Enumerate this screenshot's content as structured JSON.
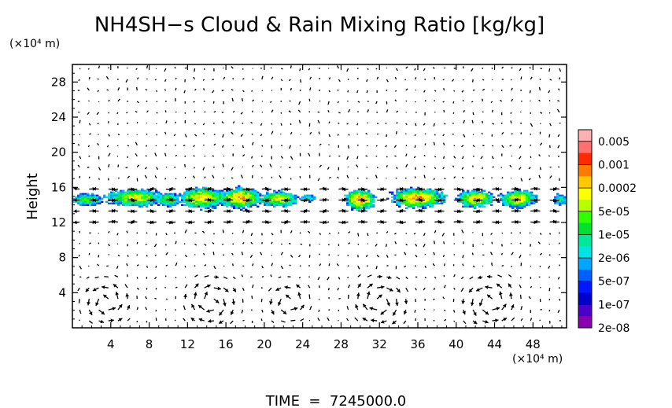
{
  "chart_data": {
    "type": "heatmap",
    "title": "NH4SH−s Cloud & Rain Mixing Ratio [kg/kg]",
    "xlabel": "",
    "ylabel": "Height",
    "x_unit": "(×10⁴ m)",
    "y_unit": "(×10⁴ m)",
    "xlim": [
      0,
      51.5
    ],
    "ylim": [
      0,
      30
    ],
    "x_ticks": [
      4,
      8,
      12,
      16,
      20,
      24,
      28,
      32,
      36,
      40,
      44,
      48
    ],
    "y_ticks": [
      4,
      8,
      12,
      16,
      20,
      24,
      28
    ],
    "colorbar": {
      "labels": [
        "0.005",
        "0.001",
        "0.0002",
        "5e-05",
        "1e-05",
        "2e-06",
        "5e-07",
        "1e-07",
        "2e-08"
      ],
      "colors": [
        "#ffb0b0",
        "#ff7070",
        "#ff2a00",
        "#ff7a00",
        "#ffc800",
        "#ffff00",
        "#b8ff00",
        "#30ff00",
        "#00e030",
        "#00e89a",
        "#00e4e4",
        "#00a6ff",
        "#0060ff",
        "#0018ff",
        "#0000c8",
        "#4a00c8",
        "#8800b0"
      ]
    },
    "cloud_blobs": [
      {
        "x": 1.5,
        "y": 14.6,
        "w": 3.2,
        "h": 1.4,
        "peak": 0.55
      },
      {
        "x": 6.5,
        "y": 14.8,
        "w": 6.0,
        "h": 2.0,
        "peak": 0.7
      },
      {
        "x": 10.0,
        "y": 14.6,
        "w": 2.6,
        "h": 1.6,
        "peak": 0.55
      },
      {
        "x": 13.5,
        "y": 14.8,
        "w": 5.0,
        "h": 2.4,
        "peak": 0.75
      },
      {
        "x": 17.5,
        "y": 14.8,
        "w": 4.5,
        "h": 2.4,
        "peak": 0.8
      },
      {
        "x": 21.5,
        "y": 14.7,
        "w": 4.2,
        "h": 1.8,
        "peak": 0.7
      },
      {
        "x": 24.5,
        "y": 14.8,
        "w": 1.6,
        "h": 0.8,
        "peak": 0.4
      },
      {
        "x": 30.0,
        "y": 14.6,
        "w": 3.2,
        "h": 2.4,
        "peak": 0.85
      },
      {
        "x": 36.0,
        "y": 14.8,
        "w": 5.8,
        "h": 2.2,
        "peak": 0.85
      },
      {
        "x": 42.0,
        "y": 14.7,
        "w": 4.0,
        "h": 2.0,
        "peak": 0.75
      },
      {
        "x": 46.5,
        "y": 14.7,
        "w": 4.0,
        "h": 2.0,
        "peak": 0.75
      },
      {
        "x": 50.8,
        "y": 14.6,
        "w": 1.4,
        "h": 1.2,
        "peak": 0.45
      }
    ],
    "wind_cells": [
      {
        "cx": 3.5,
        "cy": 3.0,
        "r": 3.5,
        "dir": 1
      },
      {
        "cx": 14.5,
        "cy": 3.0,
        "r": 3.8,
        "dir": -1
      },
      {
        "cx": 22.5,
        "cy": 3.0,
        "r": 3.0,
        "dir": 1
      },
      {
        "cx": 32.0,
        "cy": 3.0,
        "r": 4.0,
        "dir": -1
      },
      {
        "cx": 43.5,
        "cy": 3.0,
        "r": 4.0,
        "dir": 1
      }
    ]
  },
  "footer": {
    "time_text": "TIME  =  7245000.0"
  }
}
